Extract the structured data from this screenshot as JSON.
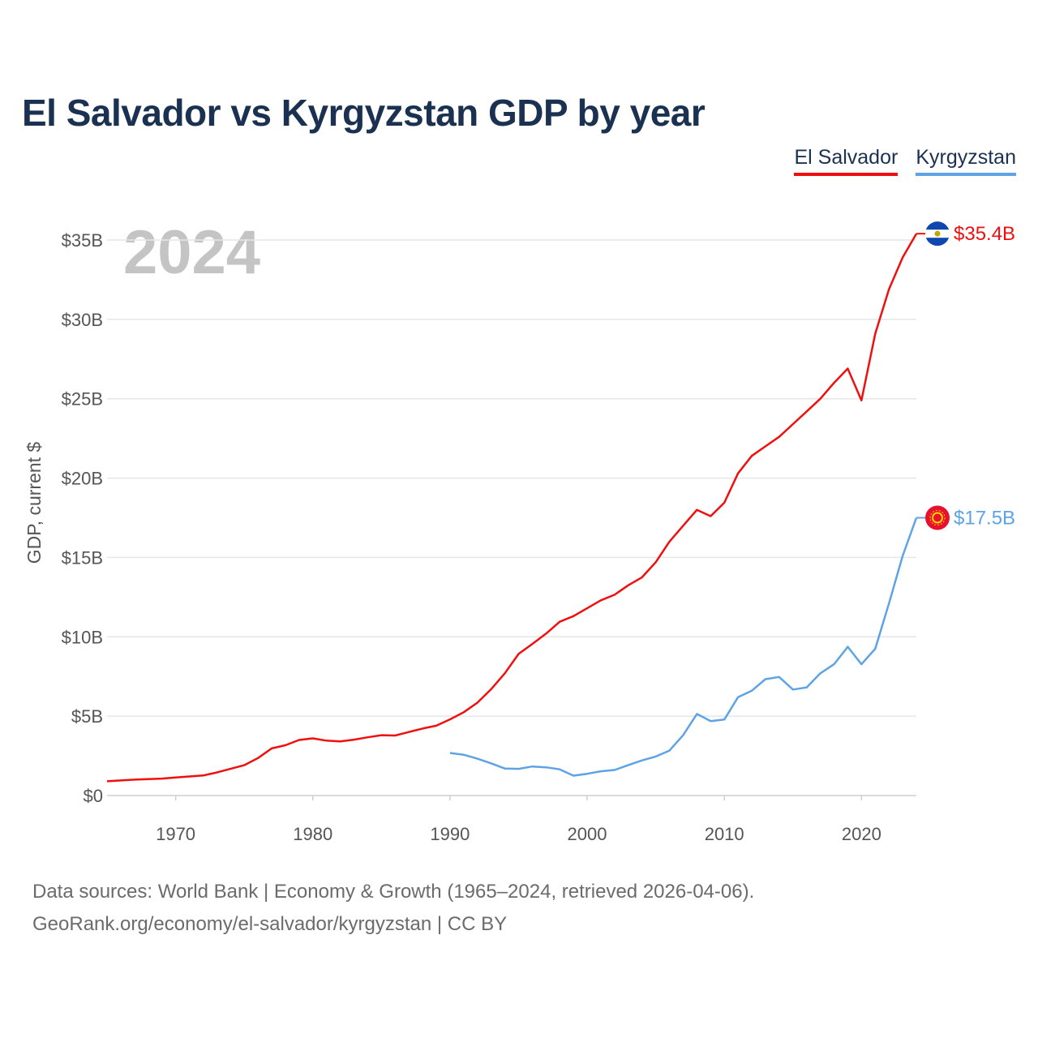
{
  "title": "El Salvador vs Kyrgyzstan GDP by year",
  "year_label": "2024",
  "legend": [
    {
      "name": "El Salvador",
      "color": "#f00f0f"
    },
    {
      "name": "Kyrgyzstan",
      "color": "#5da3e6"
    }
  ],
  "footer": {
    "line1": "Data sources: World Bank | Economy & Growth (1965–2024, retrieved 2026-04-06).",
    "line2": "GeoRank.org/economy/el-salvador/kyrgyzstan | CC BY"
  },
  "chart_data": {
    "type": "line",
    "title": "El Salvador vs Kyrgyzstan GDP by year",
    "xlabel": "",
    "ylabel": "GDP, current $",
    "xlim": [
      1965,
      2024
    ],
    "ylim": [
      0,
      35
    ],
    "x_ticks": [
      1970,
      1980,
      1990,
      2000,
      2010,
      2020
    ],
    "y_ticks": [
      {
        "value": 0,
        "label": "$0"
      },
      {
        "value": 5,
        "label": "$5B"
      },
      {
        "value": 10,
        "label": "$10B"
      },
      {
        "value": 15,
        "label": "$15B"
      },
      {
        "value": 20,
        "label": "$20B"
      },
      {
        "value": 25,
        "label": "$25B"
      },
      {
        "value": 30,
        "label": "$30B"
      },
      {
        "value": 35,
        "label": "$35B"
      }
    ],
    "grid": true,
    "units": "billions USD",
    "series": [
      {
        "name": "El Salvador",
        "color": "#f00f0f",
        "end_label": "$35.4B",
        "x": [
          1965,
          1966,
          1967,
          1968,
          1969,
          1970,
          1971,
          1972,
          1973,
          1974,
          1975,
          1976,
          1977,
          1978,
          1979,
          1980,
          1981,
          1982,
          1983,
          1984,
          1985,
          1986,
          1987,
          1988,
          1989,
          1990,
          1991,
          1992,
          1993,
          1994,
          1995,
          1996,
          1997,
          1998,
          1999,
          2000,
          2001,
          2002,
          2003,
          2004,
          2005,
          2006,
          2007,
          2008,
          2009,
          2010,
          2011,
          2012,
          2013,
          2014,
          2015,
          2016,
          2017,
          2018,
          2019,
          2020,
          2021,
          2022,
          2023,
          2024
        ],
        "values": [
          0.9,
          0.95,
          1.0,
          1.03,
          1.07,
          1.14,
          1.2,
          1.26,
          1.45,
          1.68,
          1.91,
          2.36,
          2.97,
          3.17,
          3.5,
          3.6,
          3.46,
          3.41,
          3.52,
          3.67,
          3.8,
          3.78,
          4.0,
          4.22,
          4.4,
          4.8,
          5.25,
          5.85,
          6.7,
          7.7,
          8.92,
          9.55,
          10.2,
          10.95,
          11.3,
          11.8,
          12.3,
          12.65,
          13.25,
          13.75,
          14.7,
          16.0,
          17.0,
          18.0,
          17.6,
          18.45,
          20.3,
          21.4,
          22.0,
          22.6,
          23.4,
          24.2,
          25.0,
          26.0,
          26.9,
          24.9,
          29.1,
          31.9,
          33.9,
          35.4
        ]
      },
      {
        "name": "Kyrgyzstan",
        "color": "#5da3e6",
        "end_label": "$17.5B",
        "x": [
          1990,
          1991,
          1992,
          1993,
          1994,
          1995,
          1996,
          1997,
          1998,
          1999,
          2000,
          2001,
          2002,
          2003,
          2004,
          2005,
          2006,
          2007,
          2008,
          2009,
          2010,
          2011,
          2012,
          2013,
          2014,
          2015,
          2016,
          2017,
          2018,
          2019,
          2020,
          2021,
          2022,
          2023,
          2024
        ],
        "values": [
          2.68,
          2.57,
          2.32,
          2.03,
          1.7,
          1.68,
          1.83,
          1.78,
          1.65,
          1.25,
          1.37,
          1.53,
          1.61,
          1.92,
          2.21,
          2.46,
          2.83,
          3.8,
          5.14,
          4.69,
          4.79,
          6.2,
          6.6,
          7.33,
          7.47,
          6.68,
          6.81,
          7.7,
          8.27,
          9.37,
          8.27,
          9.25,
          12.1,
          15.1,
          17.5
        ]
      }
    ]
  }
}
